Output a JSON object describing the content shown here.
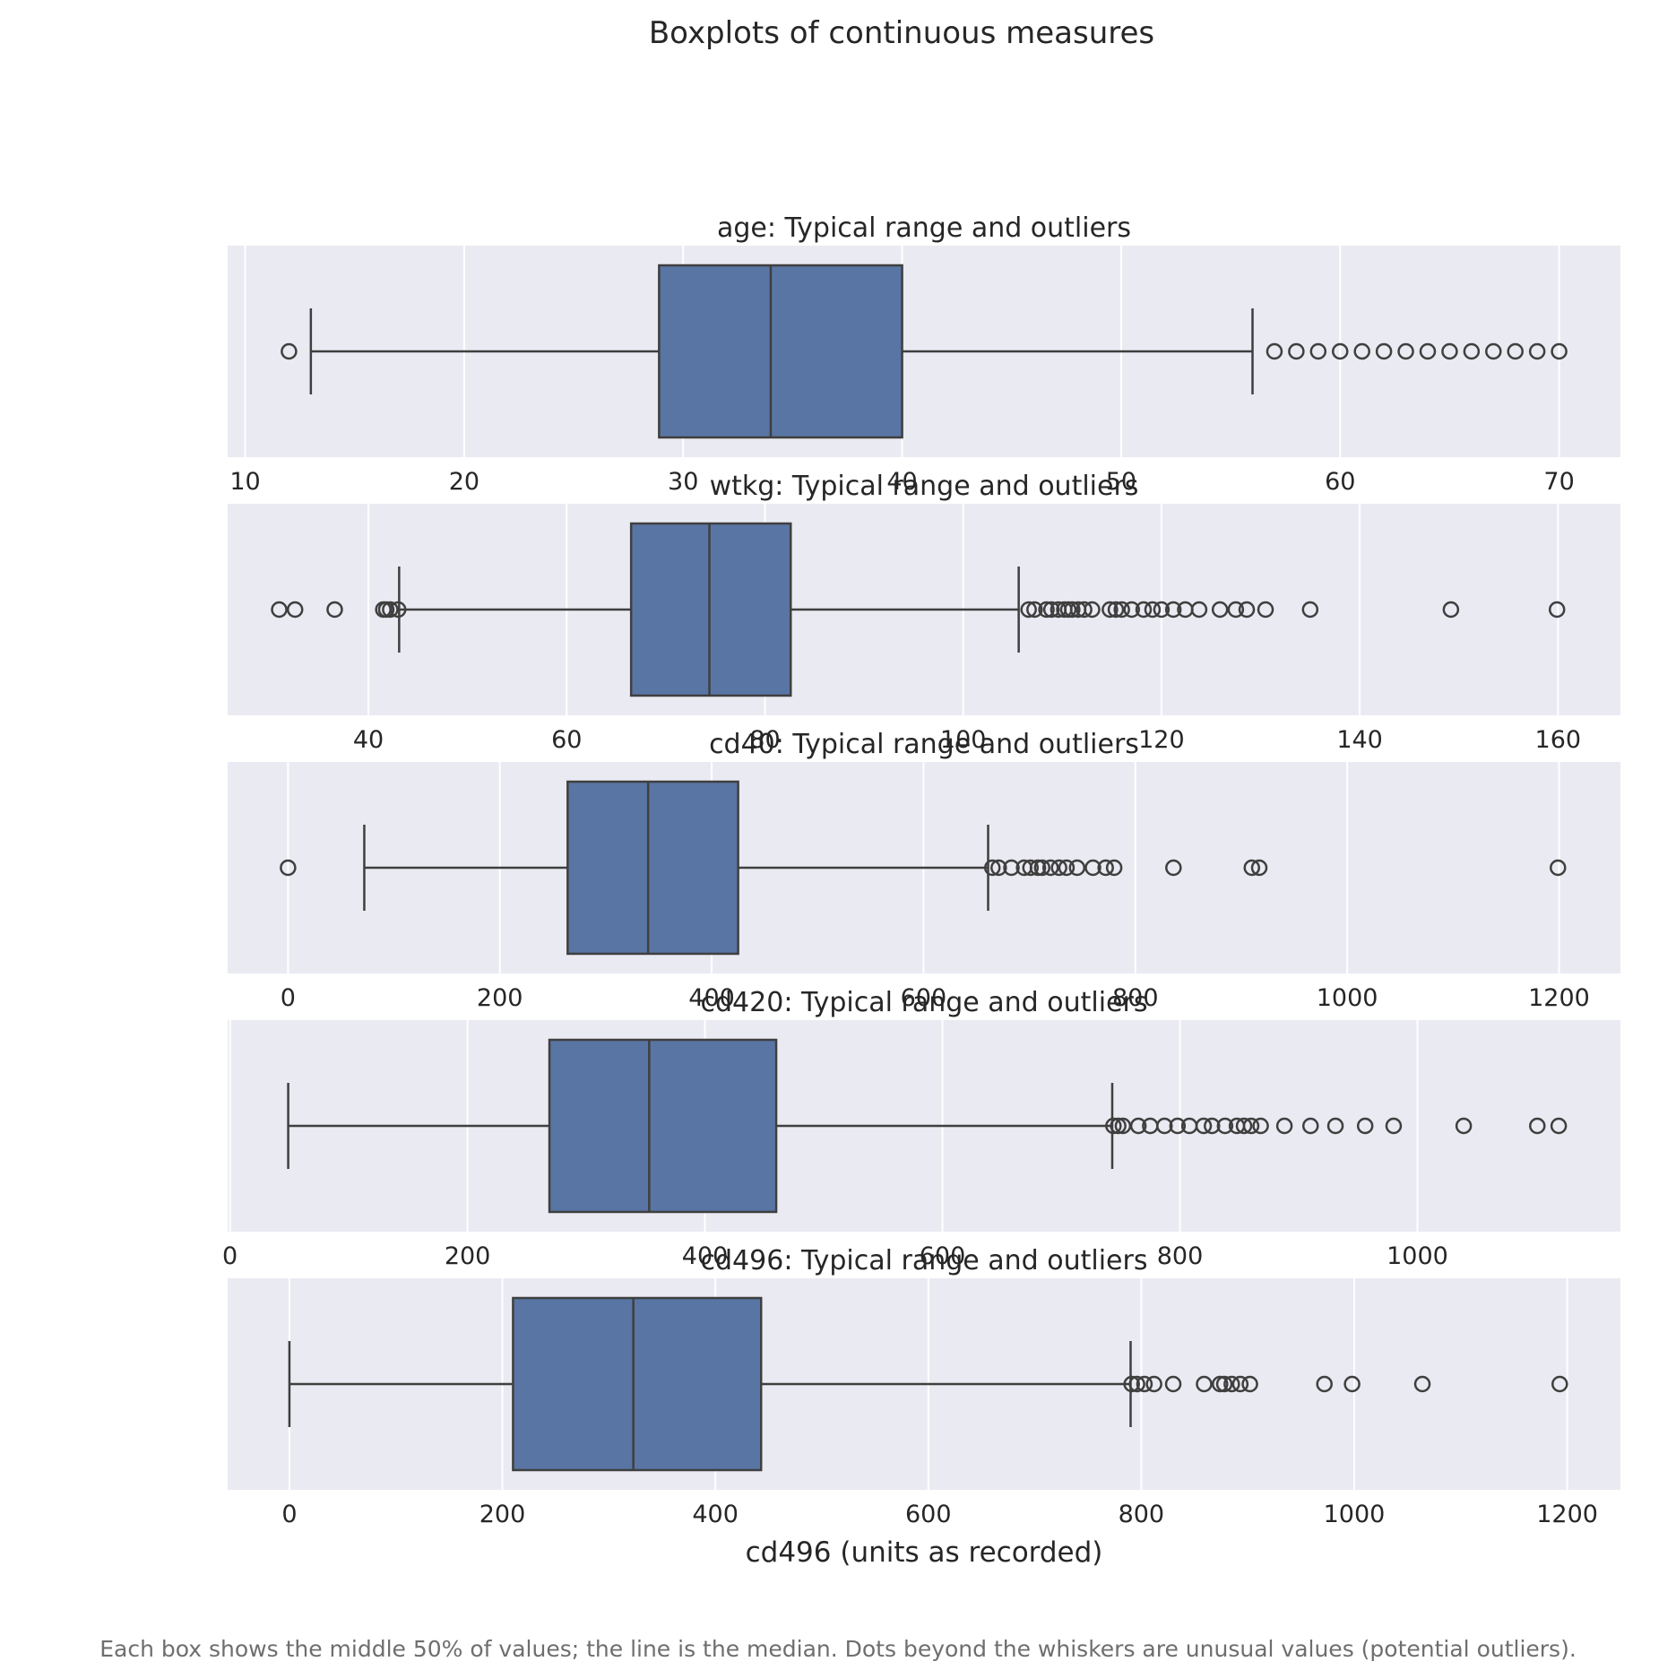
{
  "title": "Boxplots of continuous measures",
  "caption": "Each box shows the middle 50% of values; the line is the median. Dots beyond the whiskers are unusual values (potential outliers).",
  "colors": {
    "panel_background": "#eaeaf2",
    "gridline": "#ffffff",
    "box_fill": "#5975a4",
    "line": "#3f3f3f",
    "title_text": "#262626",
    "caption_text": "#6e6e6e"
  },
  "chart_data": [
    {
      "type": "boxplot",
      "variable": "age",
      "title": "age: Typical range and outliers",
      "xlabel": "",
      "xlim": [
        9.2,
        72.8
      ],
      "ticks": [
        10,
        20,
        30,
        40,
        50,
        60,
        70
      ],
      "tick_labels": [
        "10",
        "20",
        "30",
        "40",
        "50",
        "60",
        "70"
      ],
      "grid": true,
      "whisker_low": 13,
      "q1": 28.9,
      "median": 34,
      "q3": 40,
      "whisker_high": 56,
      "outliers": [
        12,
        57,
        58,
        59,
        60,
        61,
        62,
        63,
        64,
        65,
        66,
        67,
        68,
        69,
        70
      ]
    },
    {
      "type": "boxplot",
      "variable": "wtkg",
      "title": "wtkg: Typical range and outliers",
      "xlabel": "",
      "xlim": [
        25.8,
        166.3
      ],
      "ticks": [
        40,
        60,
        80,
        100,
        120,
        140,
        160
      ],
      "tick_labels": [
        "40",
        "60",
        "80",
        "100",
        "120",
        "140",
        "160"
      ],
      "grid": true,
      "whisker_low": 43.1,
      "q1": 66.5,
      "median": 74.4,
      "q3": 82.6,
      "whisker_high": 105.6,
      "outliers": [
        31,
        32.6,
        36.6,
        41.5,
        41.8,
        42.2,
        43,
        106.6,
        107.2,
        108.4,
        108.9,
        109.6,
        110.2,
        110.6,
        111,
        111.6,
        112.2,
        113,
        114.8,
        115.4,
        116,
        117,
        118.2,
        119.1,
        120,
        121.2,
        122.4,
        123.8,
        125.9,
        127.5,
        128.6,
        130.5,
        135,
        149.2,
        159.9
      ]
    },
    {
      "type": "boxplot",
      "variable": "cd40",
      "title": "cd40: Typical range and outliers",
      "xlabel": "",
      "xlim": [
        -57,
        1258
      ],
      "ticks": [
        0,
        200,
        400,
        600,
        800,
        1000,
        1200
      ],
      "tick_labels": [
        "0",
        "200",
        "400",
        "600",
        "800",
        "1000",
        "1200"
      ],
      "grid": true,
      "whisker_low": 72,
      "q1": 264,
      "median": 340,
      "q3": 425,
      "whisker_high": 661,
      "outliers": [
        0,
        665,
        671,
        683,
        695,
        701,
        708,
        712,
        720,
        728,
        735,
        745,
        760,
        772,
        780,
        836,
        910,
        917,
        1199
      ]
    },
    {
      "type": "boxplot",
      "variable": "cd420",
      "title": "cd420: Typical range and outliers",
      "xlabel": "",
      "xlim": [
        -2,
        1171
      ],
      "ticks": [
        0,
        200,
        400,
        600,
        800,
        1000
      ],
      "tick_labels": [
        "0",
        "200",
        "400",
        "600",
        "800",
        "1000"
      ],
      "grid": true,
      "whisker_low": 49,
      "q1": 269,
      "median": 353,
      "q3": 460,
      "whisker_high": 743,
      "outliers": [
        744,
        748,
        752,
        765,
        775,
        787,
        798,
        808,
        820,
        827,
        838,
        848,
        854,
        860,
        868,
        888,
        910,
        931,
        956,
        980,
        1039,
        1101,
        1119
      ]
    },
    {
      "type": "boxplot",
      "variable": "cd496",
      "title": "cd496: Typical range and outliers",
      "xlabel": "cd496 (units as recorded)",
      "xlim": [
        -58,
        1250
      ],
      "ticks": [
        0,
        200,
        400,
        600,
        800,
        1000,
        1200
      ],
      "tick_labels": [
        "0",
        "200",
        "400",
        "600",
        "800",
        "1000",
        "1200"
      ],
      "grid": true,
      "whisker_low": 0,
      "q1": 210,
      "median": 323,
      "q3": 443,
      "whisker_high": 790,
      "outliers": [
        791,
        796,
        803,
        812,
        830,
        859,
        874,
        878,
        885,
        893,
        902,
        972,
        998,
        1064,
        1193
      ]
    }
  ]
}
